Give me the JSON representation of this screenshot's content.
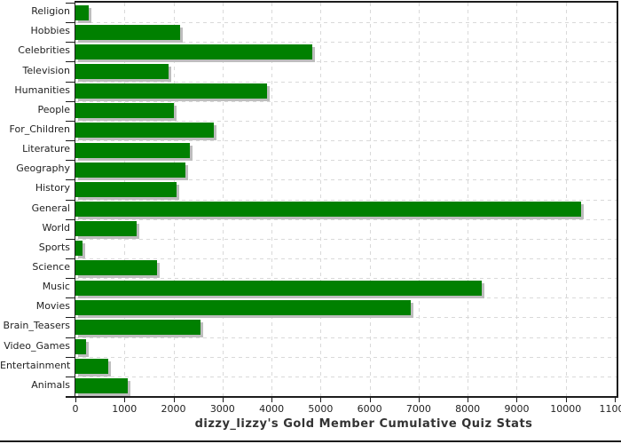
{
  "chart_data": {
    "type": "bar",
    "orientation": "horizontal",
    "title": "dizzy_lizzy's Gold Member Cumulative Quiz Stats",
    "categories": [
      "Religion",
      "Hobbies",
      "Celebrities",
      "Television",
      "Humanities",
      "People",
      "For_Children",
      "Literature",
      "Geography",
      "History",
      "General",
      "World",
      "Sports",
      "Science",
      "Music",
      "Movies",
      "Brain_Teasers",
      "Video_Games",
      "Entertainment",
      "Animals"
    ],
    "values": [
      270,
      2140,
      4830,
      1900,
      3900,
      2010,
      2820,
      2330,
      2240,
      2060,
      10310,
      1250,
      150,
      1670,
      8280,
      6840,
      2560,
      220,
      670,
      1070
    ],
    "xlabel": "",
    "ylabel": "",
    "xlim": [
      0,
      11000
    ],
    "x_ticks": [
      0,
      1000,
      2000,
      3000,
      4000,
      5000,
      6000,
      7000,
      8000,
      9000,
      10000,
      11000
    ],
    "grid": "dashed-both-axes",
    "legend": "none",
    "bar_style": "flat-with-drop-shadow"
  },
  "colors": {
    "bar": "#008000",
    "bar_shadow": "#bdbdbd",
    "grid": "#d9d9d9",
    "axis": "#1c1c1c",
    "tick_text": "#222222",
    "title_text": "#333333",
    "background": "#ffffff"
  }
}
